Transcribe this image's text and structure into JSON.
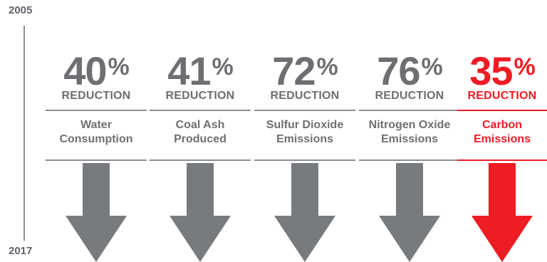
{
  "timeline": {
    "start_label": "2005",
    "end_label": "2017"
  },
  "colors": {
    "gray": "#6d6f72",
    "arrow_gray": "#787b7e",
    "red": "#ee1c25"
  },
  "chart_data": {
    "type": "bar",
    "title": "",
    "categories": [
      "Water Consumption",
      "Coal Ash Produced",
      "Sulfur Dioxide Emissions",
      "Nitrogen Oxide Emissions",
      "Carbon Emissions"
    ],
    "values": [
      40,
      41,
      72,
      76,
      35
    ],
    "unit": "%",
    "value_suffix": "REDUCTION",
    "x_range": [
      "2005",
      "2017"
    ],
    "highlighted_category": "Carbon Emissions",
    "items": [
      {
        "value": "40",
        "unit": "%",
        "label": "REDUCTION",
        "line1": "Water",
        "line2": "Consumption",
        "highlight": false
      },
      {
        "value": "41",
        "unit": "%",
        "label": "REDUCTION",
        "line1": "Coal Ash",
        "line2": "Produced",
        "highlight": false
      },
      {
        "value": "72",
        "unit": "%",
        "label": "REDUCTION",
        "line1": "Sulfur Dioxide",
        "line2": "Emissions",
        "highlight": false
      },
      {
        "value": "76",
        "unit": "%",
        "label": "REDUCTION",
        "line1": "Nitrogen Oxide",
        "line2": "Emissions",
        "highlight": false
      },
      {
        "value": "35",
        "unit": "%",
        "label": "REDUCTION",
        "line1": "Carbon",
        "line2": "Emissions",
        "highlight": true
      }
    ]
  }
}
